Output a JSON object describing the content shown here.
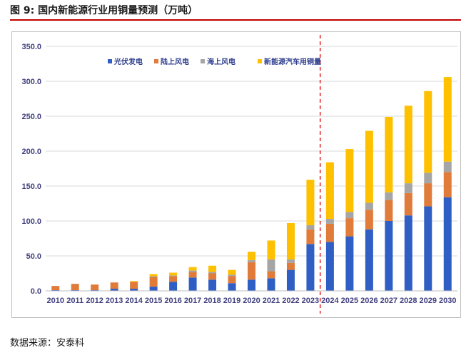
{
  "figure": {
    "title": "图 9:  国内新能源行业用铜量预测（万吨）",
    "source": "数据来源：安泰科"
  },
  "chart_data": {
    "type": "bar",
    "stacked": true,
    "categories": [
      "2010",
      "2011",
      "2012",
      "2013",
      "2014",
      "2015",
      "2016",
      "2017",
      "2018",
      "2019",
      "2020",
      "2021",
      "2022",
      "2023",
      "2024",
      "2025",
      "2026",
      "2027",
      "2028",
      "2029",
      "2030"
    ],
    "ylim": [
      0,
      350
    ],
    "yticks": [
      "0.0",
      "50.0",
      "100.0",
      "150.0",
      "200.0",
      "250.0",
      "300.0",
      "350.0"
    ],
    "forecast_divider_after": "2023",
    "legend_position": "top",
    "grid": true,
    "series": [
      {
        "name": "光伏发电",
        "color": "#2f5ec4",
        "values": [
          1,
          1,
          1,
          3,
          3,
          6,
          13,
          19,
          16,
          11,
          16,
          18,
          30,
          67,
          70,
          78,
          88,
          100,
          108,
          121,
          134
        ]
      },
      {
        "name": "陆上风电",
        "color": "#e07b39",
        "values": [
          6,
          9,
          8,
          9,
          10,
          14,
          8,
          8,
          9,
          10,
          25,
          10,
          10,
          21,
          26,
          26,
          28,
          30,
          32,
          33,
          36
        ]
      },
      {
        "name": "海上风电",
        "color": "#a5a5a5",
        "values": [
          0,
          0,
          0,
          0,
          0,
          1,
          1,
          2,
          2,
          2,
          3,
          17,
          5,
          6,
          7,
          9,
          10,
          11,
          14,
          15,
          15
        ]
      },
      {
        "name": "新能源汽车用铜量",
        "color": "#ffc000",
        "values": [
          0,
          0,
          0,
          0,
          1,
          3,
          4,
          5,
          9,
          7,
          12,
          27,
          52,
          65,
          81,
          90,
          103,
          108,
          111,
          117,
          121
        ]
      }
    ]
  }
}
